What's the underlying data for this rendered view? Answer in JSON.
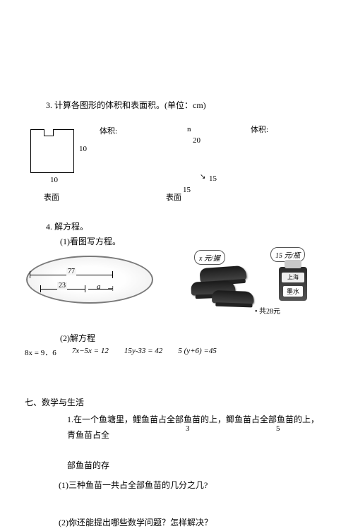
{
  "p3": {
    "title": "3. 计算各图形的体积和表面积。(单位：cm)",
    "volume_label": "体积:",
    "surface_label": "表面",
    "square_side_v": "10",
    "square_side_h": "10",
    "n_label": "n",
    "twenty": "20",
    "fifteen_a": "15",
    "fifteen_b": "15",
    "arrow": "↘"
  },
  "p4": {
    "title": "4. 解方程。",
    "sub1": "(1)看图写方程。",
    "ruler77": "77",
    "ruler23": "23",
    "a_var": "a",
    "bubble1": "x 元/握",
    "bubble2": "15 元/瓶",
    "ink_top": "上海",
    "ink_label": "墨水",
    "total": "• 共28元",
    "sub2": "(2)解方程",
    "eq1_lhs": "8x",
    "eq1_rhs": " = 9．6",
    "eq2": "7x−5x  = 12",
    "eq3": "15y-33 = 42",
    "eq4": "5 (y+6) =45"
  },
  "sec7": {
    "heading": "七、数学与生活",
    "line1": "1.在一个鱼塘里，鲤鱼苗占全部鱼苗的上，鲫鱼苗占全部鱼苗的上，青鱼苗占全",
    "frac3": "3",
    "frac5": "5",
    "line2": "部鱼苗的存",
    "q1": "(1)三种鱼苗一共占全部鱼苗的几分之几?",
    "q2": "(2)你还能提出哪些数学问题？怎样解决？"
  }
}
